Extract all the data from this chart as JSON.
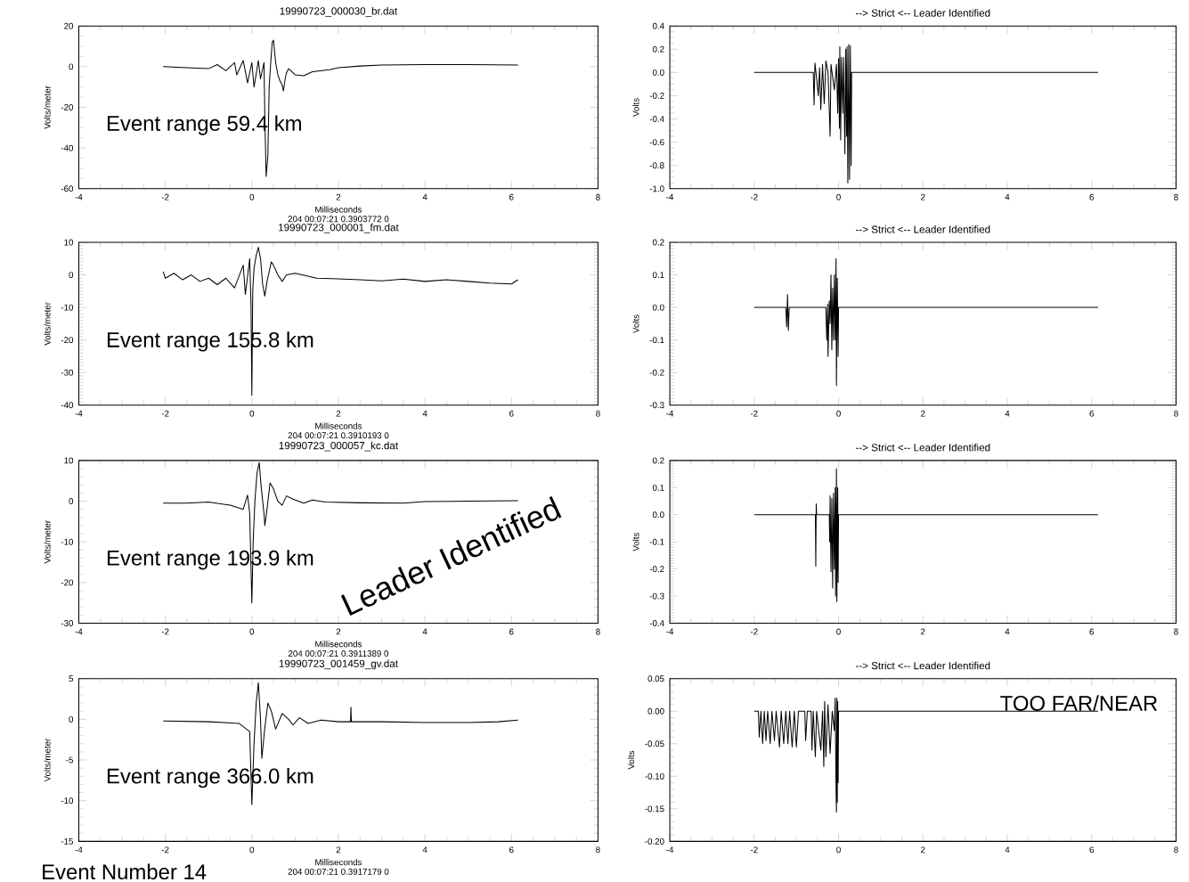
{
  "chart_data": [
    {
      "type": "line",
      "title": "19990723_000030_br.dat",
      "xlabel": "Milliseconds",
      "ylabel": "Volts/meter",
      "color": "#000000",
      "x": [
        -2.05,
        -1.5,
        -1.0,
        -0.8,
        -0.6,
        -0.4,
        -0.35,
        -0.2,
        -0.1,
        0.0,
        0.05,
        0.15,
        0.2,
        0.28,
        0.3,
        0.33,
        0.37,
        0.4,
        0.43,
        0.47,
        0.5,
        0.55,
        0.6,
        0.65,
        0.7,
        0.73,
        0.77,
        0.8,
        0.85,
        0.9,
        1.0,
        1.2,
        1.4,
        1.8,
        2.0,
        2.5,
        3.0,
        4.0,
        5.0,
        6.15
      ],
      "values": [
        0,
        -0.5,
        -1,
        1,
        -2,
        2,
        -4,
        3,
        -8,
        2,
        -10,
        3,
        -6,
        2,
        -25,
        -54,
        -44,
        -10,
        0,
        12,
        13,
        2,
        -4,
        -7,
        -9,
        -12,
        -6,
        -3,
        -1,
        -2,
        -4,
        -4.5,
        -2.5,
        -1.5,
        -0.5,
        0.3,
        0.8,
        1.0,
        1.0,
        0.8
      ],
      "xlim": [
        -4,
        8
      ],
      "ylim": [
        -60,
        20
      ],
      "xticks": [
        -4,
        -2,
        0,
        2,
        4,
        6,
        8
      ],
      "yticks": [
        -60,
        -40,
        -20,
        0,
        20
      ],
      "annotations": [
        "Event range  59.4 km",
        "204 00:07:21 0.3903772  0"
      ]
    },
    {
      "type": "line",
      "title": "--> Strict <-- Leader Identified",
      "ylabel": "Volts",
      "color": "#000000",
      "x": [
        -2.0,
        -0.6,
        -0.58,
        -0.56,
        -0.52,
        -0.48,
        -0.45,
        -0.42,
        -0.38,
        -0.34,
        -0.3,
        -0.25,
        -0.2,
        -0.18,
        -0.1,
        -0.05,
        -0.02,
        0.0,
        0.02,
        0.03,
        0.05,
        0.07,
        0.1,
        0.12,
        0.15,
        0.17,
        0.19,
        0.2,
        0.22,
        0.24,
        0.26,
        0.28,
        0.3,
        0.31,
        6.15
      ],
      "values": [
        0,
        0,
        -0.28,
        0.08,
        -0.05,
        -0.2,
        0.04,
        -0.32,
        0.07,
        -0.27,
        0.1,
        0,
        -0.55,
        0.07,
        -0.15,
        0.07,
        -0.35,
        0.12,
        -0.48,
        0.22,
        -0.58,
        0.13,
        -0.35,
        0.13,
        -0.7,
        0.2,
        -0.55,
        0.22,
        -0.95,
        0.24,
        -0.92,
        0.23,
        -0.8,
        0,
        0
      ],
      "xlim": [
        -4,
        8
      ],
      "ylim": [
        -1.0,
        0.4
      ],
      "xticks": [
        -4,
        -2,
        0,
        2,
        4,
        6,
        8
      ],
      "yticks": [
        {
          "value": -1.0,
          "label": "-1.0"
        },
        {
          "value": -0.8,
          "label": "-0.8"
        },
        {
          "value": -0.6,
          "label": "-0.6"
        },
        {
          "value": -0.4,
          "label": "-0.4"
        },
        {
          "value": -0.2,
          "label": "-0.2"
        },
        {
          "value": 0,
          "label": "0.0"
        },
        {
          "value": 0.2,
          "label": "0.2"
        },
        {
          "value": 0.4,
          "label": "0.4"
        }
      ]
    },
    {
      "type": "line",
      "title": "19990723_000001_fm.dat",
      "xlabel": "Milliseconds",
      "ylabel": "Volts/meter",
      "color": "#000000",
      "x": [
        -2.05,
        -2.0,
        -1.8,
        -1.6,
        -1.4,
        -1.2,
        -1.0,
        -0.8,
        -0.6,
        -0.4,
        -0.2,
        -0.15,
        -0.05,
        -0.02,
        0.0,
        0.02,
        0.05,
        0.1,
        0.15,
        0.2,
        0.25,
        0.3,
        0.35,
        0.45,
        0.5,
        0.6,
        0.7,
        0.8,
        1.0,
        1.5,
        2.0,
        2.5,
        3.0,
        3.5,
        4.0,
        4.5,
        5.0,
        5.5,
        6.0,
        6.15
      ],
      "values": [
        1,
        -1,
        0.5,
        -1.5,
        0,
        -2,
        -1,
        -3,
        -1,
        -4,
        3,
        -6,
        5,
        -9,
        -37,
        -5,
        2,
        6,
        8.5,
        5,
        -3,
        -6.5,
        -2,
        4,
        3,
        0,
        -2,
        0,
        0.5,
        -1,
        -1.2,
        -1.5,
        -1.8,
        -1.3,
        -2,
        -1.5,
        -2,
        -2.5,
        -2.8,
        -1.5
      ],
      "xlim": [
        -4,
        8
      ],
      "ylim": [
        -40,
        10
      ],
      "xticks": [
        -4,
        -2,
        0,
        2,
        4,
        6,
        8
      ],
      "yticks": [
        -40,
        -30,
        -20,
        -10,
        0,
        10
      ],
      "annotations": [
        "Event range  155.8 km",
        "204 00:07:21 0.3910193  0"
      ]
    },
    {
      "type": "line",
      "title": "--> Strict <-- Leader Identified",
      "ylabel": "Volts",
      "color": "#000000",
      "x": [
        -2.0,
        -1.25,
        -1.23,
        -1.21,
        -1.19,
        -1.17,
        -0.3,
        -0.28,
        -0.26,
        -0.25,
        -0.22,
        -0.2,
        -0.18,
        -0.16,
        -0.14,
        -0.12,
        -0.1,
        -0.08,
        -0.06,
        -0.05,
        -0.03,
        -0.01,
        0.0,
        6.15
      ],
      "values": [
        0,
        0,
        -0.06,
        0.04,
        -0.07,
        0,
        0,
        -0.1,
        0.01,
        -0.15,
        0.02,
        -0.05,
        0.1,
        -0.13,
        0.06,
        -0.1,
        0.1,
        -0.1,
        0.15,
        -0.24,
        0.09,
        -0.15,
        0,
        0
      ],
      "xlim": [
        -4,
        8
      ],
      "ylim": [
        -0.3,
        0.2
      ],
      "xticks": [
        -4,
        -2,
        0,
        2,
        4,
        6,
        8
      ],
      "yticks": [
        {
          "value": -0.3,
          "label": "-0.3"
        },
        {
          "value": -0.2,
          "label": "-0.2"
        },
        {
          "value": -0.1,
          "label": "-0.1"
        },
        {
          "value": 0,
          "label": "0.0"
        },
        {
          "value": 0.1,
          "label": "0.1"
        },
        {
          "value": 0.2,
          "label": "0.2"
        }
      ]
    },
    {
      "type": "line",
      "title": "19990723_000057_kc.dat",
      "xlabel": "Milliseconds",
      "ylabel": "Volts/meter",
      "color": "#000000",
      "x": [
        -2.05,
        -1.5,
        -1.0,
        -0.5,
        -0.2,
        -0.1,
        -0.05,
        0.0,
        0.03,
        0.07,
        0.12,
        0.17,
        0.22,
        0.28,
        0.3,
        0.35,
        0.42,
        0.5,
        0.6,
        0.7,
        0.8,
        0.95,
        1.2,
        1.4,
        1.7,
        2.5,
        3.5,
        4.0,
        5.0,
        6.15
      ],
      "values": [
        -0.5,
        -0.5,
        -0.2,
        -1,
        -2,
        1.5,
        -3,
        -25,
        -10,
        0,
        7,
        9.5,
        3,
        -3,
        -6,
        -2,
        4.5,
        3,
        0,
        -1,
        1.3,
        0.5,
        -0.5,
        0.3,
        -0.2,
        -0.4,
        -0.5,
        -0.1,
        0,
        0.1
      ],
      "xlim": [
        -4,
        8
      ],
      "ylim": [
        -30,
        10
      ],
      "xticks": [
        -4,
        -2,
        0,
        2,
        4,
        6,
        8
      ],
      "yticks": [
        -30,
        -20,
        -10,
        0,
        10
      ],
      "annotations": [
        "Event range  193.9 km",
        "204 00:07:21 0.3911389  0",
        "Leader Identified"
      ]
    },
    {
      "type": "line",
      "title": "--> Strict <-- Leader Identified",
      "ylabel": "Volts",
      "color": "#000000",
      "x": [
        -2.0,
        -0.55,
        -0.54,
        -0.53,
        -0.52,
        -0.22,
        -0.21,
        -0.2,
        -0.18,
        -0.16,
        -0.14,
        -0.12,
        -0.1,
        -0.08,
        -0.07,
        -0.05,
        -0.04,
        -0.02,
        -0.01,
        0.0,
        6.15
      ],
      "values": [
        0,
        0,
        -0.19,
        0.04,
        0,
        0,
        -0.1,
        0.07,
        -0.21,
        0.06,
        -0.27,
        0.08,
        -0.2,
        0.1,
        -0.3,
        0.17,
        -0.32,
        0.1,
        -0.25,
        0,
        0
      ],
      "xlim": [
        -4,
        8
      ],
      "ylim": [
        -0.4,
        0.2
      ],
      "xticks": [
        -4,
        -2,
        0,
        2,
        4,
        6,
        8
      ],
      "yticks": [
        {
          "value": -0.4,
          "label": "-0.4"
        },
        {
          "value": -0.3,
          "label": "-0.3"
        },
        {
          "value": -0.2,
          "label": "-0.2"
        },
        {
          "value": -0.1,
          "label": "-0.1"
        },
        {
          "value": 0,
          "label": "0.0"
        },
        {
          "value": 0.1,
          "label": "0.1"
        },
        {
          "value": 0.2,
          "label": "0.2"
        }
      ]
    },
    {
      "type": "line",
      "title": "19990723_001459_gv.dat",
      "xlabel": "Milliseconds",
      "ylabel": "Volts/meter",
      "color": "#000000",
      "x": [
        -2.05,
        -1.0,
        -0.3,
        -0.05,
        0.0,
        0.05,
        0.1,
        0.15,
        0.2,
        0.23,
        0.3,
        0.37,
        0.45,
        0.55,
        0.7,
        0.85,
        0.95,
        1.1,
        1.3,
        1.6,
        2.0,
        2.28,
        2.29,
        2.3,
        3.0,
        4.0,
        5.0,
        5.7,
        6.15
      ],
      "values": [
        -0.2,
        -0.3,
        -0.5,
        -1.5,
        -10.5,
        -3,
        2,
        4.5,
        0,
        -4.8,
        -1,
        2,
        1,
        -1.2,
        0.7,
        0,
        -0.7,
        0.2,
        -0.5,
        -0.1,
        -0.3,
        -0.3,
        1.5,
        -0.3,
        -0.3,
        -0.4,
        -0.4,
        -0.3,
        -0.1
      ],
      "xlim": [
        -4,
        8
      ],
      "ylim": [
        -15,
        5
      ],
      "xticks": [
        -4,
        -2,
        0,
        2,
        4,
        6,
        8
      ],
      "yticks": [
        -15,
        -10,
        -5,
        0,
        5
      ],
      "annotations": [
        "Event range  366.0 km",
        "204 00:07:21 0.3917179  0",
        "Event Number 14"
      ]
    },
    {
      "type": "line",
      "title": "--> Strict <-- Leader Identified",
      "ylabel": "Volts",
      "color": "#000000",
      "x": [
        -2.0,
        -1.9,
        -1.88,
        -1.84,
        -1.8,
        -1.76,
        -1.72,
        -1.68,
        -1.62,
        -1.58,
        -1.52,
        -1.48,
        -1.4,
        -1.36,
        -1.3,
        -1.25,
        -1.2,
        -1.16,
        -1.1,
        -1.05,
        -1.0,
        -0.95,
        -0.8,
        -0.78,
        -0.74,
        -0.65,
        -0.63,
        -0.6,
        -0.55,
        -0.52,
        -0.42,
        -0.38,
        -0.35,
        -0.33,
        -0.3,
        -0.25,
        -0.2,
        -0.15,
        -0.1,
        -0.08,
        -0.06,
        -0.05,
        -0.04,
        -0.03,
        -0.02,
        -0.01,
        0.0,
        6.15
      ],
      "values": [
        0,
        0,
        -0.04,
        0,
        -0.05,
        0,
        -0.045,
        0,
        -0.05,
        0,
        -0.045,
        0,
        -0.055,
        0,
        -0.05,
        0,
        -0.05,
        0,
        -0.055,
        0,
        -0.055,
        0,
        0,
        -0.045,
        0,
        0,
        -0.06,
        0,
        -0.07,
        0,
        -0.06,
        0,
        -0.085,
        0.015,
        -0.07,
        0.01,
        -0.065,
        0,
        -0.03,
        0.02,
        -0.12,
        -0.155,
        0.02,
        -0.14,
        0.015,
        -0.11,
        0,
        0
      ],
      "xlim": [
        -4,
        8
      ],
      "ylim": [
        -0.2,
        0.05
      ],
      "xticks": [
        -4,
        -2,
        0,
        2,
        4,
        6,
        8
      ],
      "yticks": [
        {
          "value": -0.2,
          "label": "-0.20"
        },
        {
          "value": -0.15,
          "label": "-0.15"
        },
        {
          "value": -0.1,
          "label": "-0.10"
        },
        {
          "value": -0.05,
          "label": "-0.05"
        },
        {
          "value": 0,
          "label": "0.00"
        },
        {
          "value": 0.05,
          "label": "0.05"
        }
      ],
      "annotations": [
        "TOO FAR/NEAR"
      ]
    }
  ]
}
